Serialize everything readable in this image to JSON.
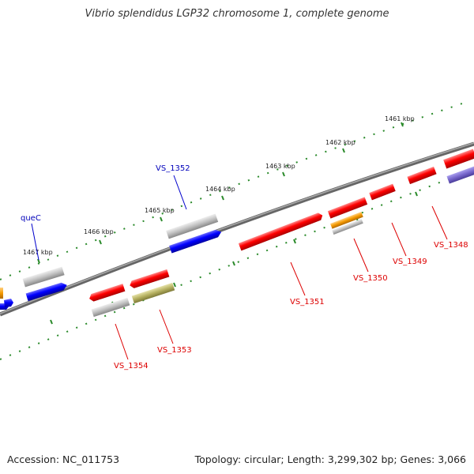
{
  "title": "Vibrio splendidus LGP32 chromosome 1, complete genome",
  "accession": "Accession: NC_011753",
  "summary": "Topology: circular; Length: 3,299,302 bp; Genes: 3,066",
  "colors": {
    "backbone": "#777777",
    "tick": "#2a8a2a",
    "red": "#ee0000",
    "blue": "#0000ee",
    "gray": "#aaaaaa",
    "orange": "#f59a00",
    "olive": "#b5b060",
    "purple": "#7766cc",
    "label_red": "#dd0000",
    "label_blue": "#0000bb"
  },
  "kbp_labels": [
    "1461 kbp",
    "1462 kbp",
    "1463 kbp",
    "1464 kbp",
    "1465 kbp",
    "1466 kbp",
    "1467 kbp"
  ],
  "gene_labels": {
    "quec": "queC",
    "vs1352": "VS_1352",
    "vs1354": "VS_1354",
    "vs1353": "VS_1353",
    "vs1351": "VS_1351",
    "vs1350": "VS_1350",
    "vs1349": "VS_1349",
    "vs1348": "VS_1348"
  }
}
